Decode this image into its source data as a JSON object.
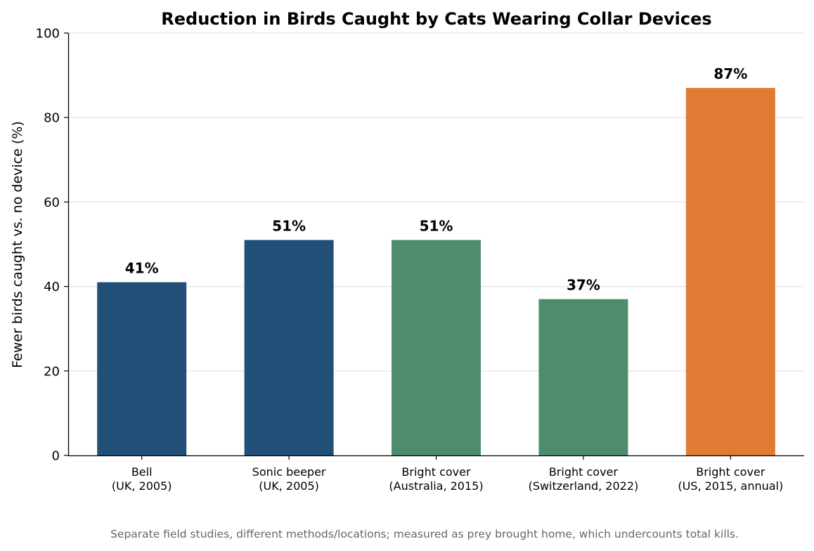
{
  "chart_data": {
    "type": "bar",
    "title": "Reduction in Birds Caught by Cats Wearing Collar Devices",
    "xlabel": "",
    "ylabel": "Fewer birds caught vs. no device (%)",
    "ylim": [
      0,
      100
    ],
    "yticks": [
      0,
      20,
      40,
      60,
      80,
      100
    ],
    "grid": "horizontal",
    "categories": [
      [
        "Bell",
        "(UK, 2005)"
      ],
      [
        "Sonic beeper",
        "(UK, 2005)"
      ],
      [
        "Bright cover",
        "(Australia, 2015)"
      ],
      [
        "Bright cover",
        "(Switzerland, 2022)"
      ],
      [
        "Bright cover",
        "(US, 2015, annual)"
      ]
    ],
    "values": [
      41,
      51,
      51,
      37,
      87
    ],
    "value_labels": [
      "41%",
      "51%",
      "51%",
      "37%",
      "87%"
    ],
    "bar_colors": [
      "#214f78",
      "#214f78",
      "#4e8c6e",
      "#4e8c6e",
      "#e07b33"
    ],
    "footnote": "Separate field studies, different methods/locations; measured as prey brought home, which undercounts total kills."
  }
}
